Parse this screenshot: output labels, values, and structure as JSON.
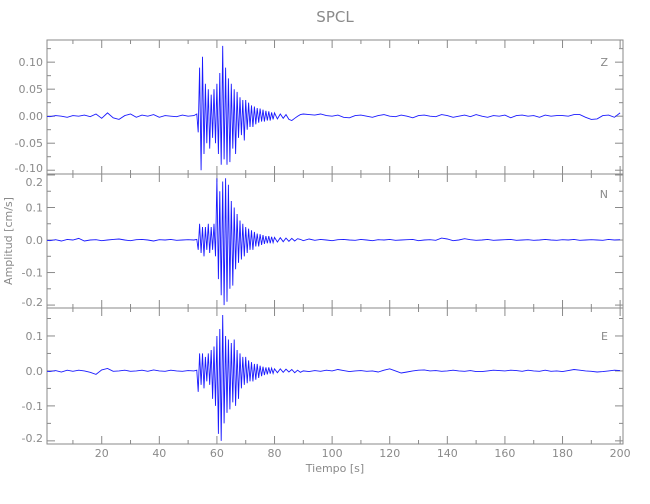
{
  "chart_data": {
    "type": "line",
    "title": "SPCL",
    "xlabel": "Tiempo [s]",
    "ylabel": "Amplitud [cm/s]",
    "xlim": [
      1,
      201
    ],
    "xticks": [
      20,
      40,
      60,
      80,
      100,
      120,
      140,
      160,
      180,
      200
    ],
    "xtick_labels": [
      "20",
      "40",
      "60",
      "80",
      "100",
      "120",
      "140",
      "160",
      "180",
      "200"
    ],
    "grid": false,
    "colors": {
      "trace": "#1a1aff",
      "axes": "#8a8a8a",
      "text": "#8a8a8a"
    },
    "x": [
      0,
      2,
      4,
      6,
      8,
      10,
      12,
      14,
      16,
      18,
      20,
      22,
      24,
      26,
      28,
      30,
      32,
      34,
      36,
      38,
      40,
      42,
      44,
      46,
      48,
      50,
      52,
      53,
      53.5,
      54,
      54.5,
      55,
      55.5,
      56,
      56.5,
      57,
      57.5,
      58,
      58.5,
      59,
      59.5,
      60,
      60.5,
      61,
      61.5,
      62,
      62.5,
      63,
      63.5,
      64,
      64.5,
      65,
      65.5,
      66,
      66.5,
      67,
      67.5,
      68,
      68.5,
      69,
      69.5,
      70,
      70.5,
      71,
      71.5,
      72,
      72.5,
      73,
      73.5,
      74,
      74.5,
      75,
      75.5,
      76,
      76.5,
      77,
      77.5,
      78,
      78.5,
      79,
      79.5,
      80,
      81,
      82,
      83,
      84,
      85,
      86,
      87,
      88,
      89,
      90,
      92,
      94,
      96,
      98,
      100,
      102,
      104,
      106,
      108,
      110,
      112,
      114,
      116,
      118,
      120,
      122,
      124,
      126,
      128,
      130,
      132,
      134,
      136,
      138,
      140,
      142,
      144,
      146,
      148,
      150,
      152,
      154,
      156,
      158,
      160,
      162,
      164,
      166,
      168,
      170,
      172,
      174,
      176,
      178,
      180,
      182,
      184,
      186,
      188,
      190,
      192,
      194,
      196,
      198,
      200
    ],
    "series": [
      {
        "name": "Z",
        "ylim": [
          -0.107,
          0.141
        ],
        "yticks": [
          0.1,
          0.05,
          0.0,
          -0.05,
          -0.1
        ],
        "ytick_labels": [
          "0.10",
          "0.05",
          "0.00",
          "-0.05",
          "-0.10"
        ],
        "yminor": 0.025,
        "y": [
          0,
          -0.001,
          0.001,
          0,
          -0.002,
          0.001,
          0,
          0.002,
          -0.001,
          0.004,
          -0.004,
          0.006,
          -0.003,
          -0.006,
          0.001,
          0.004,
          -0.002,
          0.002,
          0,
          0.003,
          -0.002,
          0.001,
          0,
          -0.001,
          0.002,
          0,
          0.001,
          0.004,
          -0.03,
          0.09,
          -0.1,
          0.11,
          -0.07,
          0.06,
          -0.05,
          0.05,
          -0.06,
          0.04,
          -0.04,
          0.05,
          -0.05,
          0.06,
          -0.07,
          0.08,
          -0.09,
          0.13,
          -0.08,
          0.09,
          -0.09,
          0.07,
          -0.085,
          0.06,
          -0.06,
          0.05,
          -0.07,
          0.045,
          -0.04,
          0.035,
          -0.035,
          0.03,
          -0.045,
          0.03,
          -0.025,
          0.025,
          -0.02,
          0.02,
          -0.02,
          0.018,
          -0.015,
          0.015,
          -0.012,
          0.014,
          -0.01,
          0.012,
          -0.01,
          0.01,
          -0.008,
          0.009,
          -0.008,
          0.007,
          -0.006,
          0.006,
          -0.005,
          0.004,
          -0.004,
          0.003,
          -0.006,
          -0.008,
          -0.004,
          0,
          0.003,
          0.004,
          0.003,
          0.002,
          0.004,
          0.001,
          0,
          0.002,
          -0.002,
          -0.003,
          0.001,
          0.002,
          0,
          -0.002,
          0.001,
          0.003,
          0,
          -0.001,
          0.002,
          0,
          -0.003,
          0.001,
          0.002,
          0,
          -0.001,
          0.003,
          0.001,
          -0.002,
          0,
          0.002,
          -0.001,
          0.003,
          0,
          -0.002,
          0.001,
          0,
          0.002,
          -0.003,
          0.001,
          0.002,
          0,
          0.001,
          -0.002,
          0.002,
          0,
          0.001,
          0.001,
          0,
          0.003,
          0.003,
          -0.002,
          -0.006,
          -0.005,
          0.001,
          0.002,
          -0.002,
          0.006
        ]
      },
      {
        "name": "N",
        "ylim": [
          -0.209,
          0.203
        ],
        "yticks": [
          0.2,
          0.1,
          0.0,
          -0.1,
          -0.2
        ],
        "ytick_labels": [
          "0.2",
          "0.1",
          "0.0",
          "-0.1",
          "-0.2"
        ],
        "yminor": 0.05,
        "y": [
          0,
          -0.002,
          0.001,
          -0.003,
          0.002,
          0,
          0.005,
          -0.003,
          0,
          0.001,
          -0.002,
          0,
          0.002,
          0.003,
          0,
          -0.002,
          0.001,
          0.002,
          0,
          -0.003,
          0.001,
          0,
          0.002,
          -0.001,
          0,
          0.001,
          0,
          0.002,
          -0.03,
          0.05,
          -0.04,
          0.04,
          -0.05,
          0.04,
          -0.03,
          0.05,
          -0.04,
          0.04,
          -0.03,
          0.05,
          -0.05,
          0.19,
          -0.12,
          0.15,
          -0.17,
          0.18,
          -0.2,
          0.19,
          -0.19,
          0.17,
          -0.15,
          0.12,
          -0.14,
          0.1,
          -0.09,
          0.08,
          -0.07,
          0.06,
          -0.06,
          0.05,
          -0.05,
          0.04,
          -0.04,
          0.035,
          -0.03,
          0.03,
          -0.03,
          0.025,
          -0.02,
          0.02,
          -0.02,
          0.018,
          -0.015,
          0.015,
          -0.012,
          0.012,
          -0.01,
          0.012,
          -0.01,
          0.01,
          -0.008,
          0.008,
          -0.006,
          0.007,
          -0.005,
          0.006,
          -0.004,
          0.005,
          -0.003,
          0.004,
          0.002,
          -0.002,
          0.003,
          -0.001,
          0.002,
          0,
          -0.002,
          0.001,
          0.002,
          0,
          -0.001,
          0.002,
          0,
          -0.002,
          0.001,
          0,
          0.002,
          -0.001,
          0,
          0.001,
          0.002,
          -0.002,
          0,
          0.001,
          -0.001,
          0.006,
          0.003,
          -0.002,
          0,
          0.004,
          0.001,
          -0.001,
          0,
          0.002,
          -0.001,
          0,
          0.001,
          0.002,
          -0.001,
          0,
          0.001,
          -0.001,
          0,
          0.002,
          0,
          -0.001,
          0.001,
          0,
          0.002,
          -0.001,
          0,
          0.001,
          0,
          -0.001,
          0.002,
          0,
          0.001
        ]
      },
      {
        "name": "E",
        "ylim": [
          -0.209,
          0.18
        ],
        "yticks": [
          0.1,
          0.0,
          -0.1,
          -0.2
        ],
        "ytick_labels": [
          "0.1",
          "0.0",
          "-0.1",
          "-0.2"
        ],
        "yminor": 0.05,
        "y": [
          0,
          -0.002,
          0.001,
          -0.003,
          0.002,
          -0.001,
          0.002,
          0,
          -0.004,
          -0.01,
          0.003,
          0.007,
          -0.001,
          0,
          0.002,
          -0.001,
          0,
          0.002,
          -0.001,
          0.003,
          0,
          -0.001,
          0.002,
          0,
          -0.001,
          0.001,
          0,
          0.002,
          -0.06,
          0.05,
          -0.04,
          0.05,
          -0.05,
          0.04,
          -0.03,
          0.05,
          -0.04,
          0.06,
          -0.08,
          0.07,
          -0.1,
          0.1,
          -0.18,
          0.12,
          -0.2,
          0.16,
          -0.15,
          0.1,
          -0.12,
          0.09,
          -0.11,
          0.08,
          -0.09,
          0.09,
          -0.1,
          0.06,
          -0.08,
          0.05,
          -0.05,
          0.04,
          -0.04,
          0.04,
          -0.035,
          0.03,
          -0.03,
          0.025,
          -0.03,
          0.02,
          -0.025,
          0.02,
          -0.02,
          0.015,
          -0.015,
          0.012,
          -0.012,
          0.01,
          -0.01,
          0.01,
          -0.008,
          0.008,
          -0.007,
          0.006,
          -0.005,
          0.006,
          -0.004,
          0.005,
          -0.003,
          0.004,
          -0.005,
          0.002,
          -0.004,
          0,
          -0.002,
          0.001,
          -0.001,
          0.002,
          0,
          0.004,
          0.001,
          -0.002,
          0,
          0.001,
          -0.001,
          0,
          -0.003,
          0.002,
          0.006,
          0,
          -0.006,
          -0.003,
          0,
          0.002,
          0.003,
          0,
          0.001,
          -0.001,
          0,
          0.002,
          0,
          -0.001,
          0.001,
          -0.002,
          -0.002,
          0,
          0.002,
          0.001,
          0,
          0.002,
          0.001,
          -0.001,
          0.002,
          0,
          -0.001,
          0.002,
          -0.001,
          0,
          -0.002,
          0.001,
          0.004,
          0.002,
          0,
          -0.001,
          -0.003,
          -0.002,
          0,
          0.002,
          0.001
        ]
      }
    ]
  }
}
